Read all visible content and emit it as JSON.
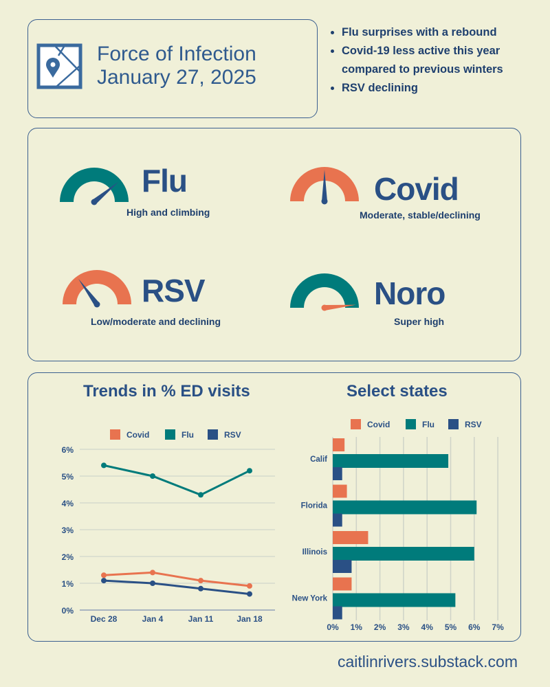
{
  "header": {
    "title_line1": "Force of Infection",
    "title_line2": "January 27, 2025",
    "icon": "map-pin-icon"
  },
  "bullets": [
    "Flu surprises with a rebound",
    "Covid-19 less active this year compared to previous winters",
    "RSV declining"
  ],
  "gauges": [
    {
      "name": "Flu",
      "description": "High and climbing",
      "level": 0.78,
      "arc_color": "#007b7b",
      "needle_color": "#2a5085"
    },
    {
      "name": "Covid",
      "description": "Moderate, stable/declining",
      "level": 0.5,
      "arc_color": "#e8734f",
      "needle_color": "#2a5085"
    },
    {
      "name": "RSV",
      "description": "Low/moderate and declining",
      "level": 0.3,
      "arc_color": "#e8734f",
      "needle_color": "#2a5085"
    },
    {
      "name": "Noro",
      "description": "Super high",
      "level": 0.97,
      "arc_color": "#007b7b",
      "needle_color": "#e8734f"
    }
  ],
  "colors": {
    "Covid": "#e8734f",
    "Flu": "#007b7b",
    "RSV": "#2a5085"
  },
  "chart_data": [
    {
      "type": "line",
      "title": "Trends in % ED visits",
      "categories": [
        "Dec 28",
        "Jan 4",
        "Jan 11",
        "Jan 18"
      ],
      "series": [
        {
          "name": "Covid",
          "values": [
            1.3,
            1.4,
            1.1,
            0.9
          ]
        },
        {
          "name": "Flu",
          "values": [
            5.4,
            5.0,
            4.3,
            5.2
          ]
        },
        {
          "name": "RSV",
          "values": [
            1.1,
            1.0,
            0.8,
            0.6
          ]
        }
      ],
      "ylim": [
        0,
        6
      ],
      "yticks": [
        "0%",
        "1%",
        "2%",
        "3%",
        "4%",
        "5%",
        "6%"
      ],
      "grid": true,
      "legend": "top"
    },
    {
      "type": "bar",
      "orientation": "horizontal",
      "title": "Select states",
      "categories": [
        "Calif",
        "Florida",
        "Illinois",
        "New York"
      ],
      "series": [
        {
          "name": "Covid",
          "values": [
            0.5,
            0.6,
            1.5,
            0.8
          ]
        },
        {
          "name": "Flu",
          "values": [
            4.9,
            6.1,
            6.0,
            5.2
          ]
        },
        {
          "name": "RSV",
          "values": [
            0.4,
            0.4,
            0.8,
            0.4
          ]
        }
      ],
      "xlim": [
        0,
        7
      ],
      "xticks": [
        "0%",
        "1%",
        "2%",
        "3%",
        "4%",
        "5%",
        "6%",
        "7%"
      ],
      "grid": true,
      "legend": "top"
    }
  ],
  "footer": "caitlinrivers.substack.com"
}
